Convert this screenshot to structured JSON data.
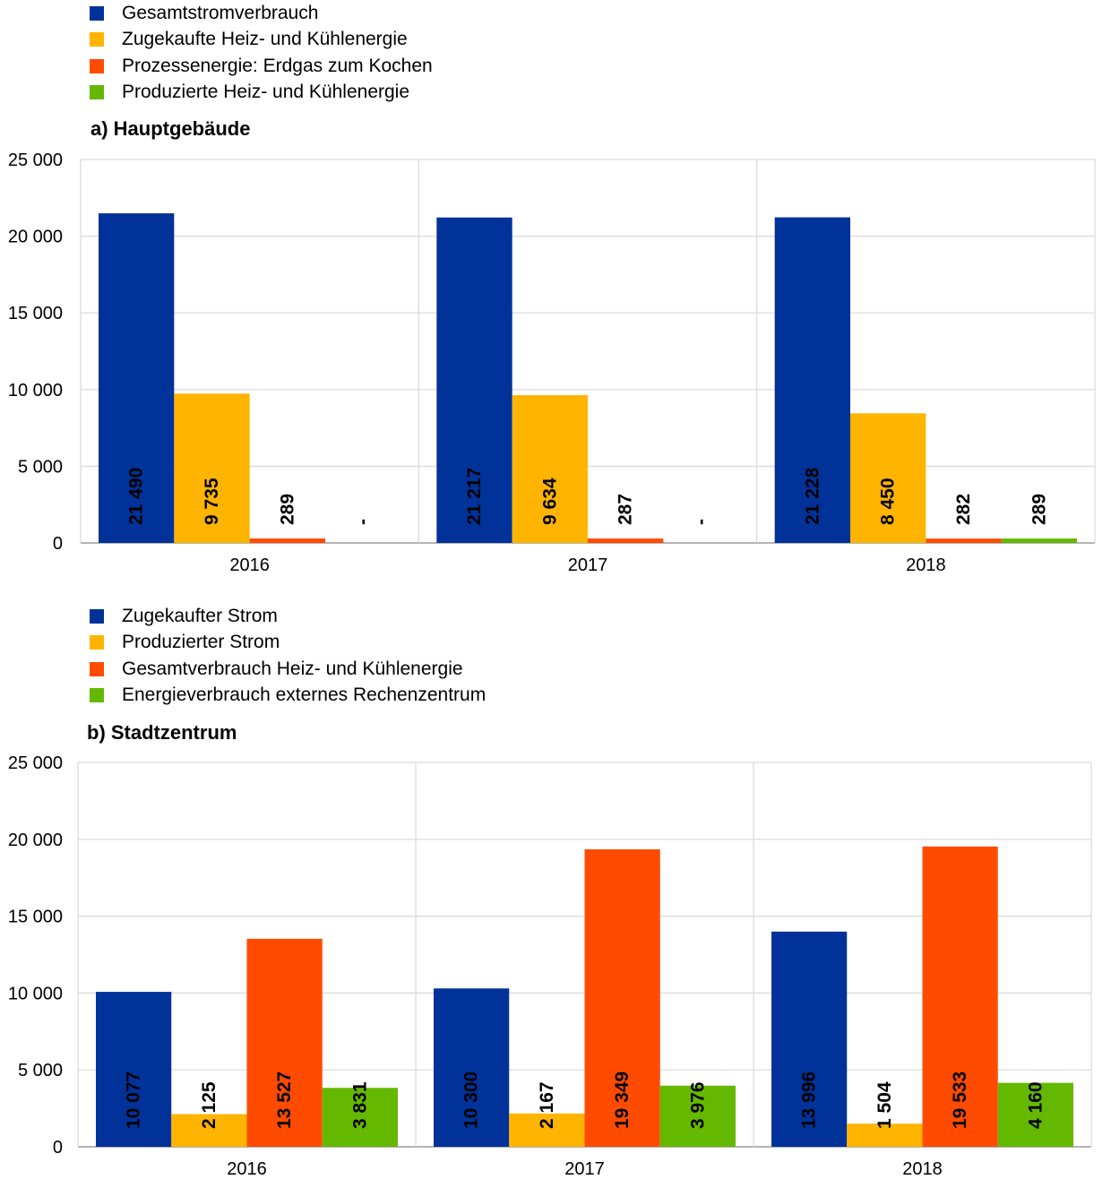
{
  "chart_data": [
    {
      "type": "bar",
      "title": "a) Hauptgebäude",
      "categories": [
        "2016",
        "2017",
        "2018"
      ],
      "ylim": [
        0,
        25000
      ],
      "yticks": [
        0,
        5000,
        10000,
        15000,
        20000,
        25000
      ],
      "ytick_labels": [
        "0",
        "5 000",
        "10 000",
        "15 000",
        "20 000",
        "25 000"
      ],
      "grid": true,
      "legend_position": "top-left",
      "series": [
        {
          "name": "Gesamtstromverbrauch",
          "color": "#003299",
          "values": [
            21490,
            21217,
            21228
          ],
          "labels": [
            "21 490",
            "21 217",
            "21 228"
          ]
        },
        {
          "name": "Zugekaufte Heiz- und Kühlenergie",
          "color": "#FFB400",
          "values": [
            9735,
            9634,
            8450
          ],
          "labels": [
            "9 735",
            "9 634",
            "8 450"
          ]
        },
        {
          "name": "Prozessenergie: Erdgas zum Kochen",
          "color": "#FF4B00",
          "values": [
            289,
            287,
            282
          ],
          "labels": [
            "289",
            "287",
            "282"
          ]
        },
        {
          "name": "Produzierte Heiz- und Kühlenergie",
          "color": "#65B800",
          "values": [
            0,
            0,
            289
          ],
          "labels": [
            "-",
            "-",
            "289"
          ]
        }
      ]
    },
    {
      "type": "bar",
      "title": "b) Stadtzentrum",
      "categories": [
        "2016",
        "2017",
        "2018"
      ],
      "ylim": [
        0,
        25000
      ],
      "yticks": [
        0,
        5000,
        10000,
        15000,
        20000,
        25000
      ],
      "ytick_labels": [
        "0",
        "5 000",
        "10 000",
        "15 000",
        "20 000",
        "25 000"
      ],
      "grid": true,
      "legend_position": "top-left",
      "series": [
        {
          "name": "Zugekaufter Strom",
          "color": "#003299",
          "values": [
            10077,
            10300,
            13996
          ],
          "labels": [
            "10 077",
            "10 300",
            "13 996"
          ]
        },
        {
          "name": "Produzierter Strom",
          "color": "#FFB400",
          "values": [
            2125,
            2167,
            1504
          ],
          "labels": [
            "2 125",
            "2 167",
            "1 504"
          ]
        },
        {
          "name": "Gesamtverbrauch Heiz- und Kühlenergie",
          "color": "#FF4B00",
          "values": [
            13527,
            19349,
            19533
          ],
          "labels": [
            "13 527",
            "19 349",
            "19 533"
          ]
        },
        {
          "name": "Energieverbrauch externes Rechenzentrum",
          "color": "#65B800",
          "values": [
            3831,
            3976,
            4160
          ],
          "labels": [
            "3 831",
            "3 976",
            "4 160"
          ]
        }
      ]
    }
  ]
}
